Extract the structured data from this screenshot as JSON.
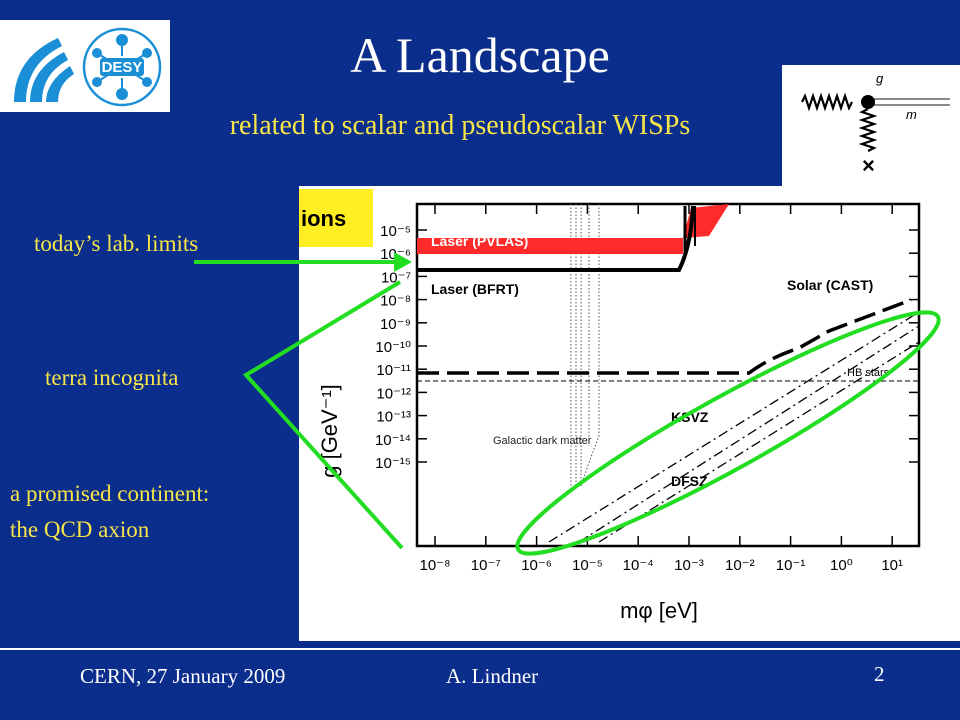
{
  "slide": {
    "title": "A Landscape",
    "subtitle": "related to scalar and pseudoscalar WISPs",
    "logo_text": "DESY",
    "annotations": {
      "lab_limits": "today’s lab. limits",
      "terra_incognita": "terra incognita",
      "continent_line1": "a promised continent:",
      "continent_line2": "the QCD axion"
    },
    "footer": {
      "venue": "CERN, 27 January 2009",
      "author": "A. Lindner",
      "page": "2"
    },
    "colors": {
      "background": "#0b2e8c",
      "accent_yellow": "#f7e54a",
      "annotation_green": "#22dd22",
      "laser_red": "#ff2a2a"
    }
  },
  "feynman": {
    "coupling": "g",
    "mass": "m"
  },
  "plot": {
    "corner_label": "ions",
    "ylabel": "g [GeV⁻¹]",
    "xlabel": "mφ [eV]",
    "y_ticks": [
      "10⁻⁵",
      "10⁻⁶",
      "10⁻⁷",
      "10⁻⁸",
      "10⁻⁹",
      "10⁻¹⁰",
      "10⁻¹¹",
      "10⁻¹²",
      "10⁻¹³",
      "10⁻¹⁴",
      "10⁻¹⁵"
    ],
    "x_ticks": [
      "10⁻⁸",
      "10⁻⁷",
      "10⁻⁶",
      "10⁻⁵",
      "10⁻⁴",
      "10⁻³",
      "10⁻²",
      "10⁻¹",
      "10⁰",
      "10¹"
    ],
    "labels": {
      "pvlas": "Laser (PVLAS)",
      "bfrt": "Laser (BFRT)",
      "cast": "Solar (CAST)",
      "hb": "HB stars",
      "ksvz": "KSVZ",
      "dfsz": "DFSZ",
      "galactic": "Galactic dark matter"
    }
  }
}
